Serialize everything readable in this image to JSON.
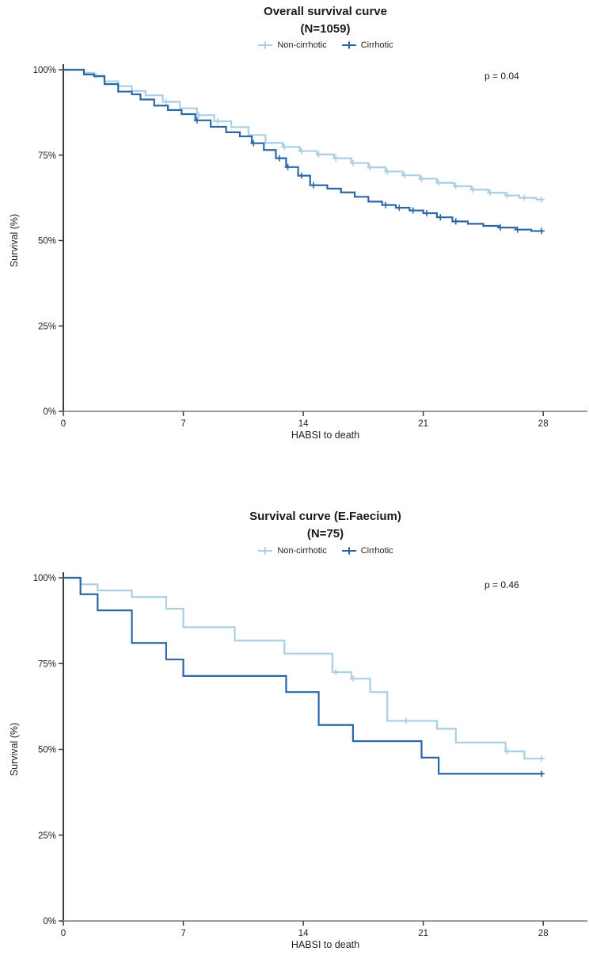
{
  "chart_data": [
    {
      "type": "line",
      "subtype": "kaplan-meier-step",
      "title": "Overall survival curve",
      "subtitle": "(N=1059)",
      "p_label": "p = 0.04",
      "xlabel": "HABSI to death",
      "ylabel": "Survival (%)",
      "xlim": [
        0,
        28
      ],
      "ylim": [
        0,
        100
      ],
      "grid": false,
      "legend_position": "top",
      "x_ticks": [
        {
          "value": 0,
          "label": "0"
        },
        {
          "value": 7,
          "label": "7"
        },
        {
          "value": 14,
          "label": "14"
        },
        {
          "value": 21,
          "label": "21"
        },
        {
          "value": 28,
          "label": "28"
        }
      ],
      "y_ticks": [
        {
          "value": 0,
          "label": "0%"
        },
        {
          "value": 25,
          "label": "25%"
        },
        {
          "value": 50,
          "label": "50%"
        },
        {
          "value": 75,
          "label": "75%"
        },
        {
          "value": 100,
          "label": "100%"
        }
      ],
      "series": [
        {
          "name": "Non-cirrhotic",
          "color": "#A9CFE4",
          "points": [
            [
              0,
              100
            ],
            [
              1.2,
              99.1
            ],
            [
              1.8,
              98.3
            ],
            [
              2.4,
              96.6
            ],
            [
              3.2,
              95.2
            ],
            [
              4,
              93.8
            ],
            [
              4.8,
              92.5
            ],
            [
              5.8,
              90.6
            ],
            [
              6.8,
              88.7
            ],
            [
              7.8,
              86.7
            ],
            [
              8.8,
              84.9
            ],
            [
              9.8,
              83.2
            ],
            [
              10.8,
              80.9
            ],
            [
              11.8,
              78.6
            ],
            [
              12.8,
              77.4
            ],
            [
              13.8,
              76.2
            ],
            [
              14.8,
              75.2
            ],
            [
              15.8,
              74.1
            ],
            [
              16.8,
              72.7
            ],
            [
              17.8,
              71.4
            ],
            [
              18.8,
              70.2
            ],
            [
              19.8,
              69.1
            ],
            [
              20.8,
              68.1
            ],
            [
              21.8,
              66.9
            ],
            [
              22.8,
              65.9
            ],
            [
              23.8,
              64.9
            ],
            [
              24.8,
              64.0
            ],
            [
              25.8,
              63.2
            ],
            [
              26.6,
              62.5
            ],
            [
              27.6,
              62.0
            ],
            [
              28,
              62.0
            ]
          ],
          "censors": [
            [
              1.9,
              98.3
            ],
            [
              6.0,
              90.6
            ],
            [
              7.9,
              86.7
            ],
            [
              9.0,
              84.9
            ],
            [
              12.9,
              77.4
            ],
            [
              13.9,
              76.2
            ],
            [
              14.9,
              75.2
            ],
            [
              15.9,
              74.1
            ],
            [
              16.9,
              72.7
            ],
            [
              17.9,
              71.4
            ],
            [
              18.9,
              70.2
            ],
            [
              19.9,
              69.1
            ],
            [
              20.9,
              68.1
            ],
            [
              21.9,
              66.9
            ],
            [
              22.9,
              65.9
            ],
            [
              23.9,
              64.9
            ],
            [
              24.9,
              64.0
            ],
            [
              25.9,
              63.2
            ],
            [
              26.9,
              62.5
            ],
            [
              27.9,
              62.0
            ]
          ]
        },
        {
          "name": "Cirrhotic",
          "color": "#2C67A5",
          "points": [
            [
              0,
              100
            ],
            [
              1.2,
              98.6
            ],
            [
              1.8,
              98.1
            ],
            [
              2.4,
              95.8
            ],
            [
              3.2,
              93.6
            ],
            [
              4,
              92.8
            ],
            [
              4.5,
              91.3
            ],
            [
              5.3,
              89.5
            ],
            [
              6.1,
              88.2
            ],
            [
              6.9,
              87.0
            ],
            [
              7.7,
              85.2
            ],
            [
              8.6,
              83.3
            ],
            [
              9.5,
              81.7
            ],
            [
              10.3,
              80.5
            ],
            [
              11,
              78.5
            ],
            [
              11.7,
              76.5
            ],
            [
              12.4,
              74.1
            ],
            [
              13,
              71.5
            ],
            [
              13.7,
              69.0
            ],
            [
              14.4,
              66.2
            ],
            [
              15.4,
              65.2
            ],
            [
              16.2,
              64.1
            ],
            [
              17,
              62.8
            ],
            [
              17.8,
              61.4
            ],
            [
              18.6,
              60.4
            ],
            [
              19.4,
              59.6
            ],
            [
              20.2,
              58.8
            ],
            [
              21,
              58.0
            ],
            [
              21.8,
              56.8
            ],
            [
              22.7,
              55.6
            ],
            [
              23.6,
              54.9
            ],
            [
              24.5,
              54.3
            ],
            [
              25.4,
              53.8
            ],
            [
              26.4,
              53.2
            ],
            [
              27.3,
              52.8
            ],
            [
              28,
              52.8
            ]
          ],
          "censors": [
            [
              7.8,
              85.2
            ],
            [
              11.1,
              78.5
            ],
            [
              12.6,
              74.1
            ],
            [
              13.1,
              71.5
            ],
            [
              13.9,
              69.0
            ],
            [
              14.6,
              66.2
            ],
            [
              18.8,
              60.4
            ],
            [
              19.6,
              59.6
            ],
            [
              20.4,
              58.8
            ],
            [
              21.2,
              58.0
            ],
            [
              22.0,
              56.8
            ],
            [
              22.9,
              55.6
            ],
            [
              25.5,
              53.8
            ],
            [
              26.5,
              53.2
            ],
            [
              27.9,
              52.8
            ]
          ]
        }
      ]
    },
    {
      "type": "line",
      "subtype": "kaplan-meier-step",
      "title": "Survival curve (E.Faecium)",
      "subtitle": "(N=75)",
      "p_label": "p = 0.46",
      "xlabel": "HABSI to death",
      "ylabel": "Survival (%)",
      "xlim": [
        0,
        28
      ],
      "ylim": [
        0,
        100
      ],
      "grid": false,
      "legend_position": "top",
      "x_ticks": [
        {
          "value": 0,
          "label": "0"
        },
        {
          "value": 7,
          "label": "7"
        },
        {
          "value": 14,
          "label": "14"
        },
        {
          "value": 21,
          "label": "21"
        },
        {
          "value": 28,
          "label": "28"
        }
      ],
      "y_ticks": [
        {
          "value": 0,
          "label": "0%"
        },
        {
          "value": 25,
          "label": "25%"
        },
        {
          "value": 50,
          "label": "50%"
        },
        {
          "value": 75,
          "label": "75%"
        },
        {
          "value": 100,
          "label": "100%"
        }
      ],
      "series": [
        {
          "name": "Non-cirrhotic",
          "color": "#A9CFE4",
          "points": [
            [
              0,
              100
            ],
            [
              1,
              98.1
            ],
            [
              2,
              96.3
            ],
            [
              4,
              94.4
            ],
            [
              6,
              91.0
            ],
            [
              7,
              85.6
            ],
            [
              10,
              81.7
            ],
            [
              12.9,
              77.9
            ],
            [
              15.7,
              72.5
            ],
            [
              16.8,
              70.6
            ],
            [
              17.9,
              66.7
            ],
            [
              18.9,
              58.3
            ],
            [
              21.8,
              56.0
            ],
            [
              22.9,
              52.0
            ],
            [
              25.8,
              49.4
            ],
            [
              26.9,
              47.3
            ],
            [
              28,
              47.3
            ]
          ],
          "censors": [
            [
              15.9,
              72.5
            ],
            [
              16.9,
              70.6
            ],
            [
              20.0,
              58.3
            ],
            [
              25.9,
              49.4
            ],
            [
              27.9,
              47.3
            ]
          ]
        },
        {
          "name": "Cirrhotic",
          "color": "#2C67A5",
          "points": [
            [
              0,
              100
            ],
            [
              1,
              95.2
            ],
            [
              2,
              90.5
            ],
            [
              4,
              81.0
            ],
            [
              6,
              76.2
            ],
            [
              7,
              71.4
            ],
            [
              13,
              66.7
            ],
            [
              14.9,
              57.1
            ],
            [
              16.9,
              52.4
            ],
            [
              20.9,
              47.6
            ],
            [
              21.9,
              42.9
            ],
            [
              28,
              42.9
            ]
          ],
          "censors": [
            [
              27.9,
              42.9
            ]
          ]
        }
      ]
    }
  ]
}
